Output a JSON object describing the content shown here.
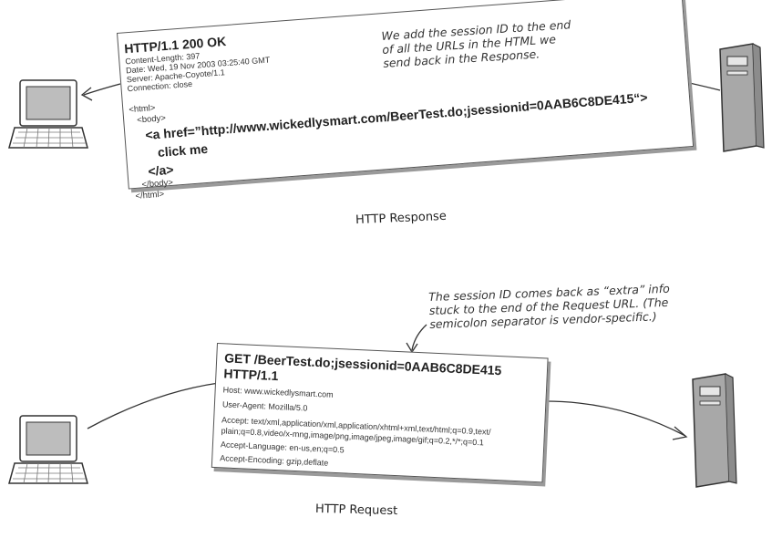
{
  "response": {
    "status_line": "HTTP/1.1 200 OK",
    "headers": [
      "Content-Length: 397",
      "Date: Wed, 19 Nov 2003 03:25:40 GMT",
      "Server: Apache-Coyote/1.1",
      "Connection: close"
    ],
    "html_open": "<html>",
    "body_open": "<body>",
    "anchor_prefix": "<a href=”http://www.wickedlysmart.com/BeerTest.do",
    "anchor_session": ";jsessionid=0AAB6C8DE415",
    "anchor_suffix": "“>",
    "link_text": "click me",
    "anchor_close": "</a>",
    "body_close": "</body>",
    "html_close": "</html>",
    "caption": "HTTP Response",
    "annotation": [
      "We add the session ID to the end",
      "of all the URLs in the HTML we",
      "send back in the Response."
    ]
  },
  "request": {
    "request_line_1": "GET /BeerTest.do",
    "request_line_session": ";jsessionid=0AAB6C8DE415",
    "request_line_2": "HTTP/1.1",
    "headers": [
      "Host: www.wickedlysmart.com",
      "User-Agent: Mozilla/5.0",
      "Accept: text/xml,application/xml,application/xhtml+xml,text/html;q=0.9,text/",
      "plain;q=0.8,video/x-mng,image/png,image/jpeg,image/gif;q=0.2,*/*;q=0.1",
      "Accept-Language: en-us,en;q=0.5",
      "Accept-Encoding: gzip,deflate"
    ],
    "caption": "HTTP Request",
    "annotation": [
      "The session ID comes back as “extra” info",
      "stuck to the end of the Request URL. (The",
      "semicolon separator is vendor-specific.)"
    ]
  },
  "icons": {
    "client": "laptop-icon",
    "server": "server-tower-icon"
  },
  "colors": {
    "ink": "#222222",
    "screen": "#bdbdbd",
    "tower": "#a8a8a8"
  }
}
